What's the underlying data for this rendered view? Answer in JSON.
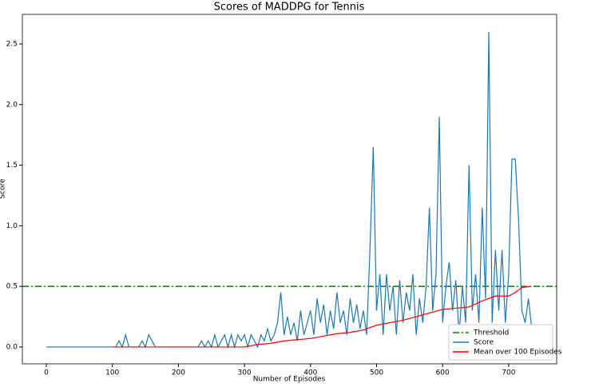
{
  "chart_data": {
    "type": "line",
    "title": "Scores of MADDPG for Tennis",
    "x_label": "Number of Episodes",
    "y_label": "Score",
    "xlim": [
      -36.3,
      772.7
    ],
    "ylim": [
      -0.139,
      2.744
    ],
    "xticks": [
      0,
      100,
      200,
      300,
      400,
      500,
      600,
      700
    ],
    "yticks": [
      {
        "value": 0,
        "label": "0.0"
      },
      0.5,
      {
        "value": 1,
        "label": "1.0"
      },
      1.5,
      {
        "value": 2,
        "label": "2.0"
      },
      2.5
    ],
    "hlines": [
      {
        "name": "Threshold",
        "value": 0.5,
        "color": "#008000"
      }
    ],
    "legend": "lower right",
    "series": [
      {
        "name": "Score",
        "color": "#1f77b4",
        "x": [
          0,
          5,
          10,
          15,
          20,
          25,
          30,
          35,
          40,
          45,
          50,
          55,
          60,
          65,
          70,
          75,
          80,
          85,
          90,
          95,
          100,
          105,
          110,
          115,
          120,
          125,
          130,
          135,
          140,
          145,
          150,
          155,
          160,
          165,
          170,
          175,
          180,
          185,
          190,
          195,
          200,
          205,
          210,
          215,
          220,
          225,
          230,
          235,
          240,
          245,
          250,
          255,
          260,
          265,
          270,
          275,
          280,
          285,
          290,
          295,
          300,
          305,
          310,
          315,
          320,
          325,
          330,
          335,
          340,
          345,
          350,
          355,
          360,
          365,
          370,
          375,
          380,
          385,
          390,
          395,
          400,
          405,
          410,
          415,
          420,
          425,
          430,
          435,
          440,
          445,
          450,
          455,
          460,
          465,
          470,
          475,
          480,
          485,
          490,
          495,
          500,
          505,
          510,
          515,
          520,
          525,
          530,
          535,
          540,
          545,
          550,
          555,
          560,
          565,
          570,
          575,
          580,
          585,
          590,
          595,
          600,
          605,
          610,
          615,
          620,
          625,
          630,
          635,
          640,
          645,
          650,
          655,
          660,
          665,
          670,
          675,
          680,
          685,
          690,
          695,
          700,
          705,
          710,
          715,
          720,
          725,
          730,
          735
        ],
        "values": [
          0,
          0,
          0,
          0,
          0,
          0,
          0,
          0,
          0,
          0,
          0,
          0,
          0,
          0,
          0,
          0,
          0,
          0,
          0,
          0,
          0,
          0,
          0.05,
          0,
          0.1,
          0,
          0,
          0,
          0,
          0.05,
          0,
          0.1,
          0.05,
          0,
          0,
          0,
          0,
          0,
          0,
          0,
          0,
          0,
          0,
          0,
          0,
          0,
          0,
          0.05,
          0,
          0.05,
          0,
          0.1,
          0,
          0.05,
          0.1,
          0,
          0.1,
          0,
          0.1,
          0.05,
          0.1,
          0,
          0.1,
          0.05,
          0,
          0.1,
          0.05,
          0.15,
          0.05,
          0.1,
          0.2,
          0.45,
          0.1,
          0.25,
          0.1,
          0.2,
          0.05,
          0.3,
          0.1,
          0.2,
          0.3,
          0.1,
          0.4,
          0.2,
          0.35,
          0.1,
          0.3,
          0.15,
          0.45,
          0.2,
          0.3,
          0.1,
          0.4,
          0.2,
          0.35,
          0.15,
          0.3,
          0.1,
          0.8,
          1.65,
          0.3,
          0.6,
          0.1,
          0.6,
          0.3,
          0.5,
          0.1,
          0.55,
          0.2,
          0.45,
          0.3,
          0.6,
          0.1,
          0.4,
          0.2,
          0.5,
          1.15,
          0.3,
          0.6,
          1.9,
          0.2,
          0.5,
          0.7,
          0.3,
          0.55,
          0.1,
          0.5,
          0.2,
          1.5,
          0.3,
          0.6,
          0.2,
          1.15,
          0.4,
          2.6,
          0.2,
          0.8,
          0.3,
          0.8,
          0.2,
          0.6,
          1.55,
          1.55,
          1.05,
          0.3,
          0.2,
          0.4,
          0.15
        ]
      },
      {
        "name": "Mean over 100 Episodes",
        "color": "#ff0000",
        "x": [
          100,
          200,
          300,
          320,
          340,
          360,
          380,
          400,
          420,
          440,
          460,
          480,
          500,
          520,
          540,
          560,
          580,
          600,
          620,
          640,
          660,
          680,
          700,
          710,
          720,
          733
        ],
        "values": [
          0,
          0,
          0,
          0.02,
          0.03,
          0.05,
          0.06,
          0.07,
          0.09,
          0.11,
          0.12,
          0.14,
          0.18,
          0.2,
          0.22,
          0.25,
          0.28,
          0.31,
          0.32,
          0.33,
          0.38,
          0.42,
          0.42,
          0.45,
          0.49,
          0.5
        ]
      }
    ]
  }
}
